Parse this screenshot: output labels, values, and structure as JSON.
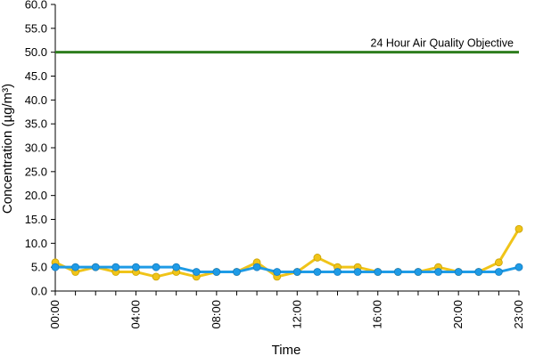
{
  "chart_data": {
    "type": "line",
    "xlabel": "Time",
    "ylabel": "Concentration (µg/m³)",
    "ylim": [
      0,
      60
    ],
    "y_ticks": [
      "0.0",
      "5.0",
      "10.0",
      "15.0",
      "20.0",
      "25.0",
      "30.0",
      "35.0",
      "40.0",
      "45.0",
      "50.0",
      "55.0",
      "60.0"
    ],
    "x": [
      0,
      1,
      2,
      3,
      4,
      5,
      6,
      7,
      8,
      9,
      10,
      11,
      12,
      13,
      14,
      15,
      16,
      17,
      18,
      19,
      20,
      21,
      22,
      23
    ],
    "x_tick_labels": [
      {
        "at": 0,
        "label": "00:00"
      },
      {
        "at": 4,
        "label": "04:00"
      },
      {
        "at": 8,
        "label": "08:00"
      },
      {
        "at": 12,
        "label": "12:00"
      },
      {
        "at": 16,
        "label": "16:00"
      },
      {
        "at": 20,
        "label": "20:00"
      },
      {
        "at": 23,
        "label": "23:00"
      }
    ],
    "grid": false,
    "legend": "none",
    "series": [
      {
        "color": "#f0c419",
        "values": [
          6,
          4,
          5,
          4,
          4,
          3,
          4,
          3,
          4,
          4,
          6,
          3,
          4,
          7,
          5,
          5,
          4,
          4,
          4,
          5,
          4,
          4,
          6,
          13
        ]
      },
      {
        "color": "#1e9be6",
        "values": [
          5,
          5,
          5,
          5,
          5,
          5,
          5,
          4,
          4,
          4,
          5,
          4,
          4,
          4,
          4,
          4,
          4,
          4,
          4,
          4,
          4,
          4,
          4,
          5
        ]
      }
    ],
    "reference_line": {
      "label": "24 Hour Air Quality Objective",
      "value": 50,
      "color": "#2e7d1e"
    }
  }
}
